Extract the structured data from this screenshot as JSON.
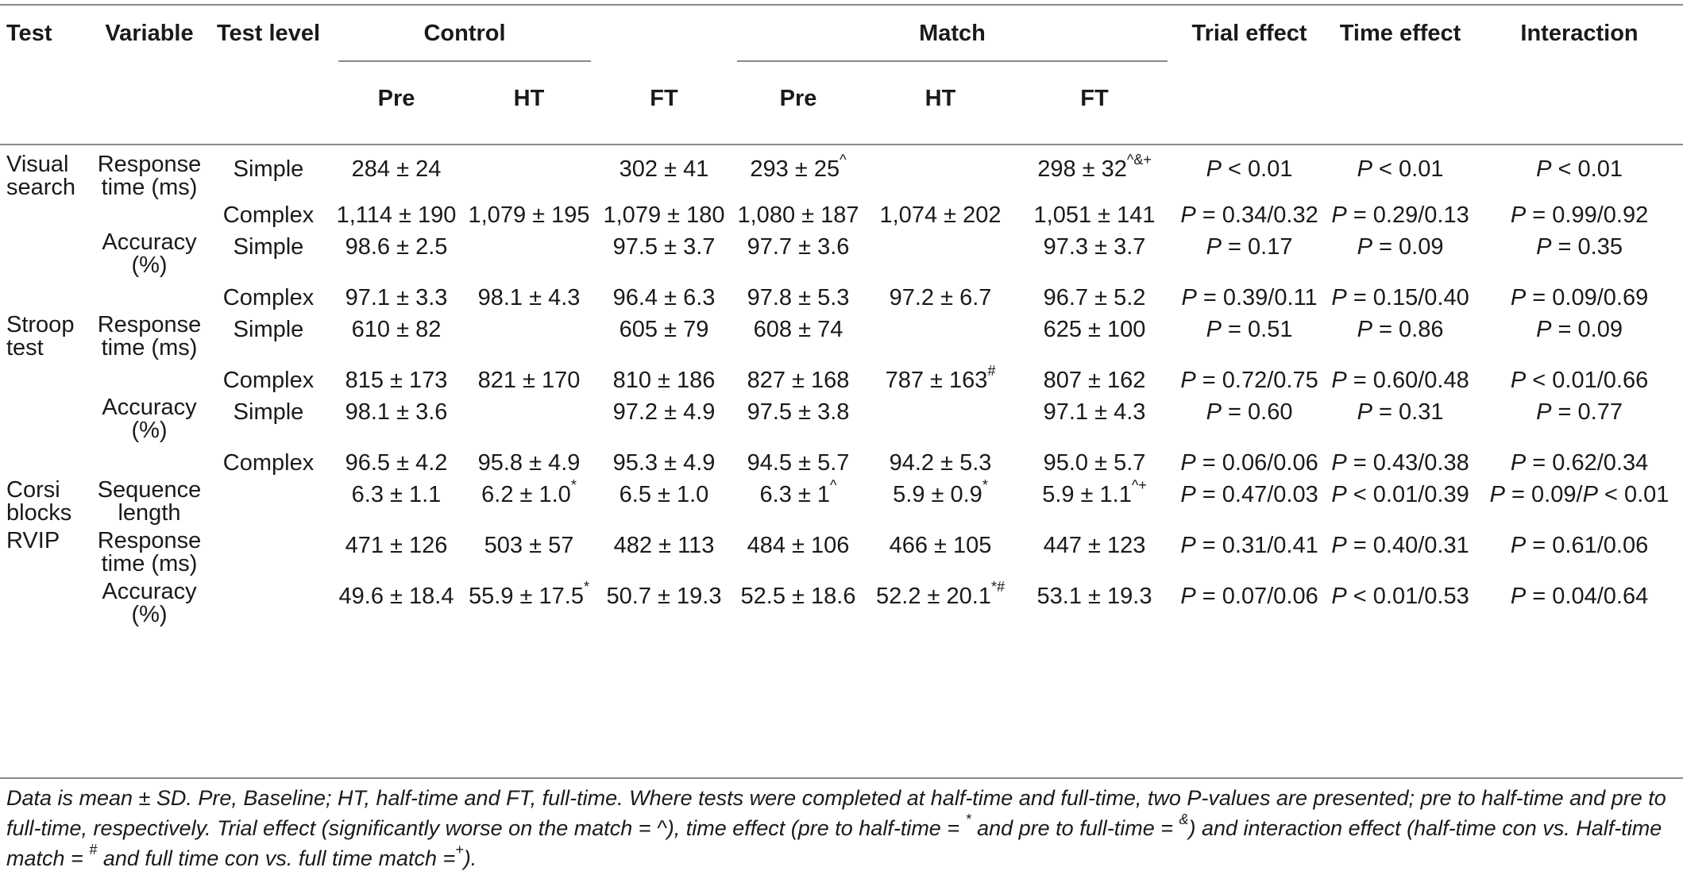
{
  "header": {
    "test": "Test",
    "variable": "Variable",
    "test_level": "Test level",
    "control": "Control",
    "match": "Match",
    "trial_effect": "Trial effect",
    "time_effect": "Time effect",
    "interaction": "Interaction",
    "pre": "Pre",
    "ht": "HT",
    "ft": "FT"
  },
  "rows": [
    {
      "test": "Visual search",
      "variable": "Response time (ms)",
      "level": "Simple",
      "c_pre": "284 ± 24",
      "c_ht": "",
      "c_ft": "302 ± 41",
      "m_pre": "293 ± 25",
      "m_pre_sup": "^",
      "m_ht": "",
      "m_ht_sup": "",
      "m_ft": "298 ± 32",
      "m_ft_sup": "^&+",
      "c_ht_sup": "",
      "trial": "P < 0.01",
      "time": "P < 0.01",
      "inter": "P < 0.01"
    },
    {
      "test": "",
      "variable": "",
      "level": "Complex",
      "c_pre": "1,114 ± 190",
      "c_ht": "1,079 ± 195",
      "c_ht_sup": "",
      "c_ft": "1,079 ± 180",
      "m_pre": "1,080 ± 187",
      "m_pre_sup": "",
      "m_ht": "1,074 ± 202",
      "m_ht_sup": "",
      "m_ft": "1,051 ± 141",
      "m_ft_sup": "",
      "trial": "P = 0.34/0.32",
      "time": "P = 0.29/0.13",
      "inter": "P = 0.99/0.92"
    },
    {
      "test": "",
      "variable": "Accuracy (%)",
      "level": "Simple",
      "c_pre": "98.6 ± 2.5",
      "c_ht": "",
      "c_ht_sup": "",
      "c_ft": "97.5 ± 3.7",
      "m_pre": "97.7 ± 3.6",
      "m_pre_sup": "",
      "m_ht": "",
      "m_ht_sup": "",
      "m_ft": "97.3 ± 3.7",
      "m_ft_sup": "",
      "trial": "P = 0.17",
      "time": "P = 0.09",
      "inter": "P = 0.35"
    },
    {
      "test": "",
      "variable": "",
      "level": "Complex",
      "c_pre": "97.1 ± 3.3",
      "c_ht": "98.1 ± 4.3",
      "c_ht_sup": "",
      "c_ft": "96.4 ± 6.3",
      "m_pre": "97.8 ± 5.3",
      "m_pre_sup": "",
      "m_ht": "97.2 ± 6.7",
      "m_ht_sup": "",
      "m_ft": "96.7 ± 5.2",
      "m_ft_sup": "",
      "trial": "P = 0.39/0.11",
      "time": "P = 0.15/0.40",
      "inter": "P = 0.09/0.69"
    },
    {
      "test": "Stroop test",
      "variable": "Response time (ms)",
      "level": "Simple",
      "c_pre": "610 ± 82",
      "c_ht": "",
      "c_ht_sup": "",
      "c_ft": "605 ± 79",
      "m_pre": "608 ± 74",
      "m_pre_sup": "",
      "m_ht": "",
      "m_ht_sup": "",
      "m_ft": "625 ± 100",
      "m_ft_sup": "",
      "trial": "P = 0.51",
      "time": "P = 0.86",
      "inter": "P = 0.09"
    },
    {
      "test": "",
      "variable": "",
      "level": "Complex",
      "c_pre": "815 ± 173",
      "c_ht": "821 ± 170",
      "c_ht_sup": "",
      "c_ft": "810 ± 186",
      "m_pre": "827 ± 168",
      "m_pre_sup": "",
      "m_ht": "787 ± 163",
      "m_ht_sup": "#",
      "m_ft": "807 ± 162",
      "m_ft_sup": "",
      "trial": "P = 0.72/0.75",
      "time": "P = 0.60/0.48",
      "inter": "P < 0.01/0.66"
    },
    {
      "test": "",
      "variable": "Accuracy (%)",
      "level": "Simple",
      "c_pre": "98.1 ± 3.6",
      "c_ht": "",
      "c_ht_sup": "",
      "c_ft": "97.2 ± 4.9",
      "m_pre": "97.5 ± 3.8",
      "m_pre_sup": "",
      "m_ht": "",
      "m_ht_sup": "",
      "m_ft": "97.1 ± 4.3",
      "m_ft_sup": "",
      "trial": "P = 0.60",
      "time": "P = 0.31",
      "inter": "P = 0.77"
    },
    {
      "test": "",
      "variable": "",
      "level": "Complex",
      "c_pre": "96.5 ± 4.2",
      "c_ht": "95.8 ± 4.9",
      "c_ht_sup": "",
      "c_ft": "95.3 ± 4.9",
      "m_pre": "94.5 ± 5.7",
      "m_pre_sup": "",
      "m_ht": "94.2 ± 5.3",
      "m_ht_sup": "",
      "m_ft": "95.0 ± 5.7",
      "m_ft_sup": "",
      "trial": "P = 0.06/0.06",
      "time": "P = 0.43/0.38",
      "inter": "P = 0.62/0.34"
    },
    {
      "test": "Corsi blocks",
      "variable": "Sequence length",
      "level": "",
      "c_pre": "6.3 ± 1.1",
      "c_ht": "6.2 ± 1.0",
      "c_ht_sup": "*",
      "c_ft": "6.5 ± 1.0",
      "m_pre": "6.3 ± 1",
      "m_pre_sup": "^",
      "m_ht": "5.9 ± 0.9",
      "m_ht_sup": "*",
      "m_ft": "5.9 ± 1.1",
      "m_ft_sup": "^+",
      "trial": "P = 0.47/0.03",
      "time": "P < 0.01/0.39",
      "inter": "P = 0.09/P < 0.01"
    },
    {
      "test": "RVIP",
      "variable": "Response time (ms)",
      "level": "",
      "c_pre": "471 ± 126",
      "c_ht": "503 ± 57",
      "c_ht_sup": "",
      "c_ft": "482 ± 113",
      "m_pre": "484 ± 106",
      "m_pre_sup": "",
      "m_ht": "466 ± 105",
      "m_ht_sup": "",
      "m_ft": "447 ± 123",
      "m_ft_sup": "",
      "trial": "P = 0.31/0.41",
      "time": "P = 0.40/0.31",
      "inter": "P = 0.61/0.06"
    },
    {
      "test": "",
      "variable": "Accuracy (%)",
      "level": "",
      "c_pre": "49.6 ± 18.4",
      "c_ht": "55.9 ± 17.5",
      "c_ht_sup": "*",
      "c_ft": "50.7 ± 19.3",
      "m_pre": "52.5 ± 18.6",
      "m_pre_sup": "",
      "m_ht": "52.2 ± 20.1",
      "m_ht_sup": "*#",
      "m_ft": "53.1 ± 19.3",
      "m_ft_sup": "",
      "trial": "P = 0.07/0.06",
      "time": "P < 0.01/0.53",
      "inter": "P = 0.04/0.64"
    }
  ],
  "footnote": {
    "p1": "Data is mean ± SD. Pre, Baseline; HT, half-time and FT, full-time. Where tests were completed at half-time and full-time, two P-values are presented; pre to half-time and pre to full-time, respectively. Trial effect (significantly worse on the match = ^), time effect (pre to half-time = ",
    "sup_star": "*",
    "p2": " and pre to full-time = ",
    "sup_amp": "&",
    "p3": ") and interaction effect (half-time con vs. Half-time match = ",
    "sup_hash": "#",
    "p4": " and full time con vs. full time match =",
    "sup_plus": "+",
    "p5": ")."
  }
}
